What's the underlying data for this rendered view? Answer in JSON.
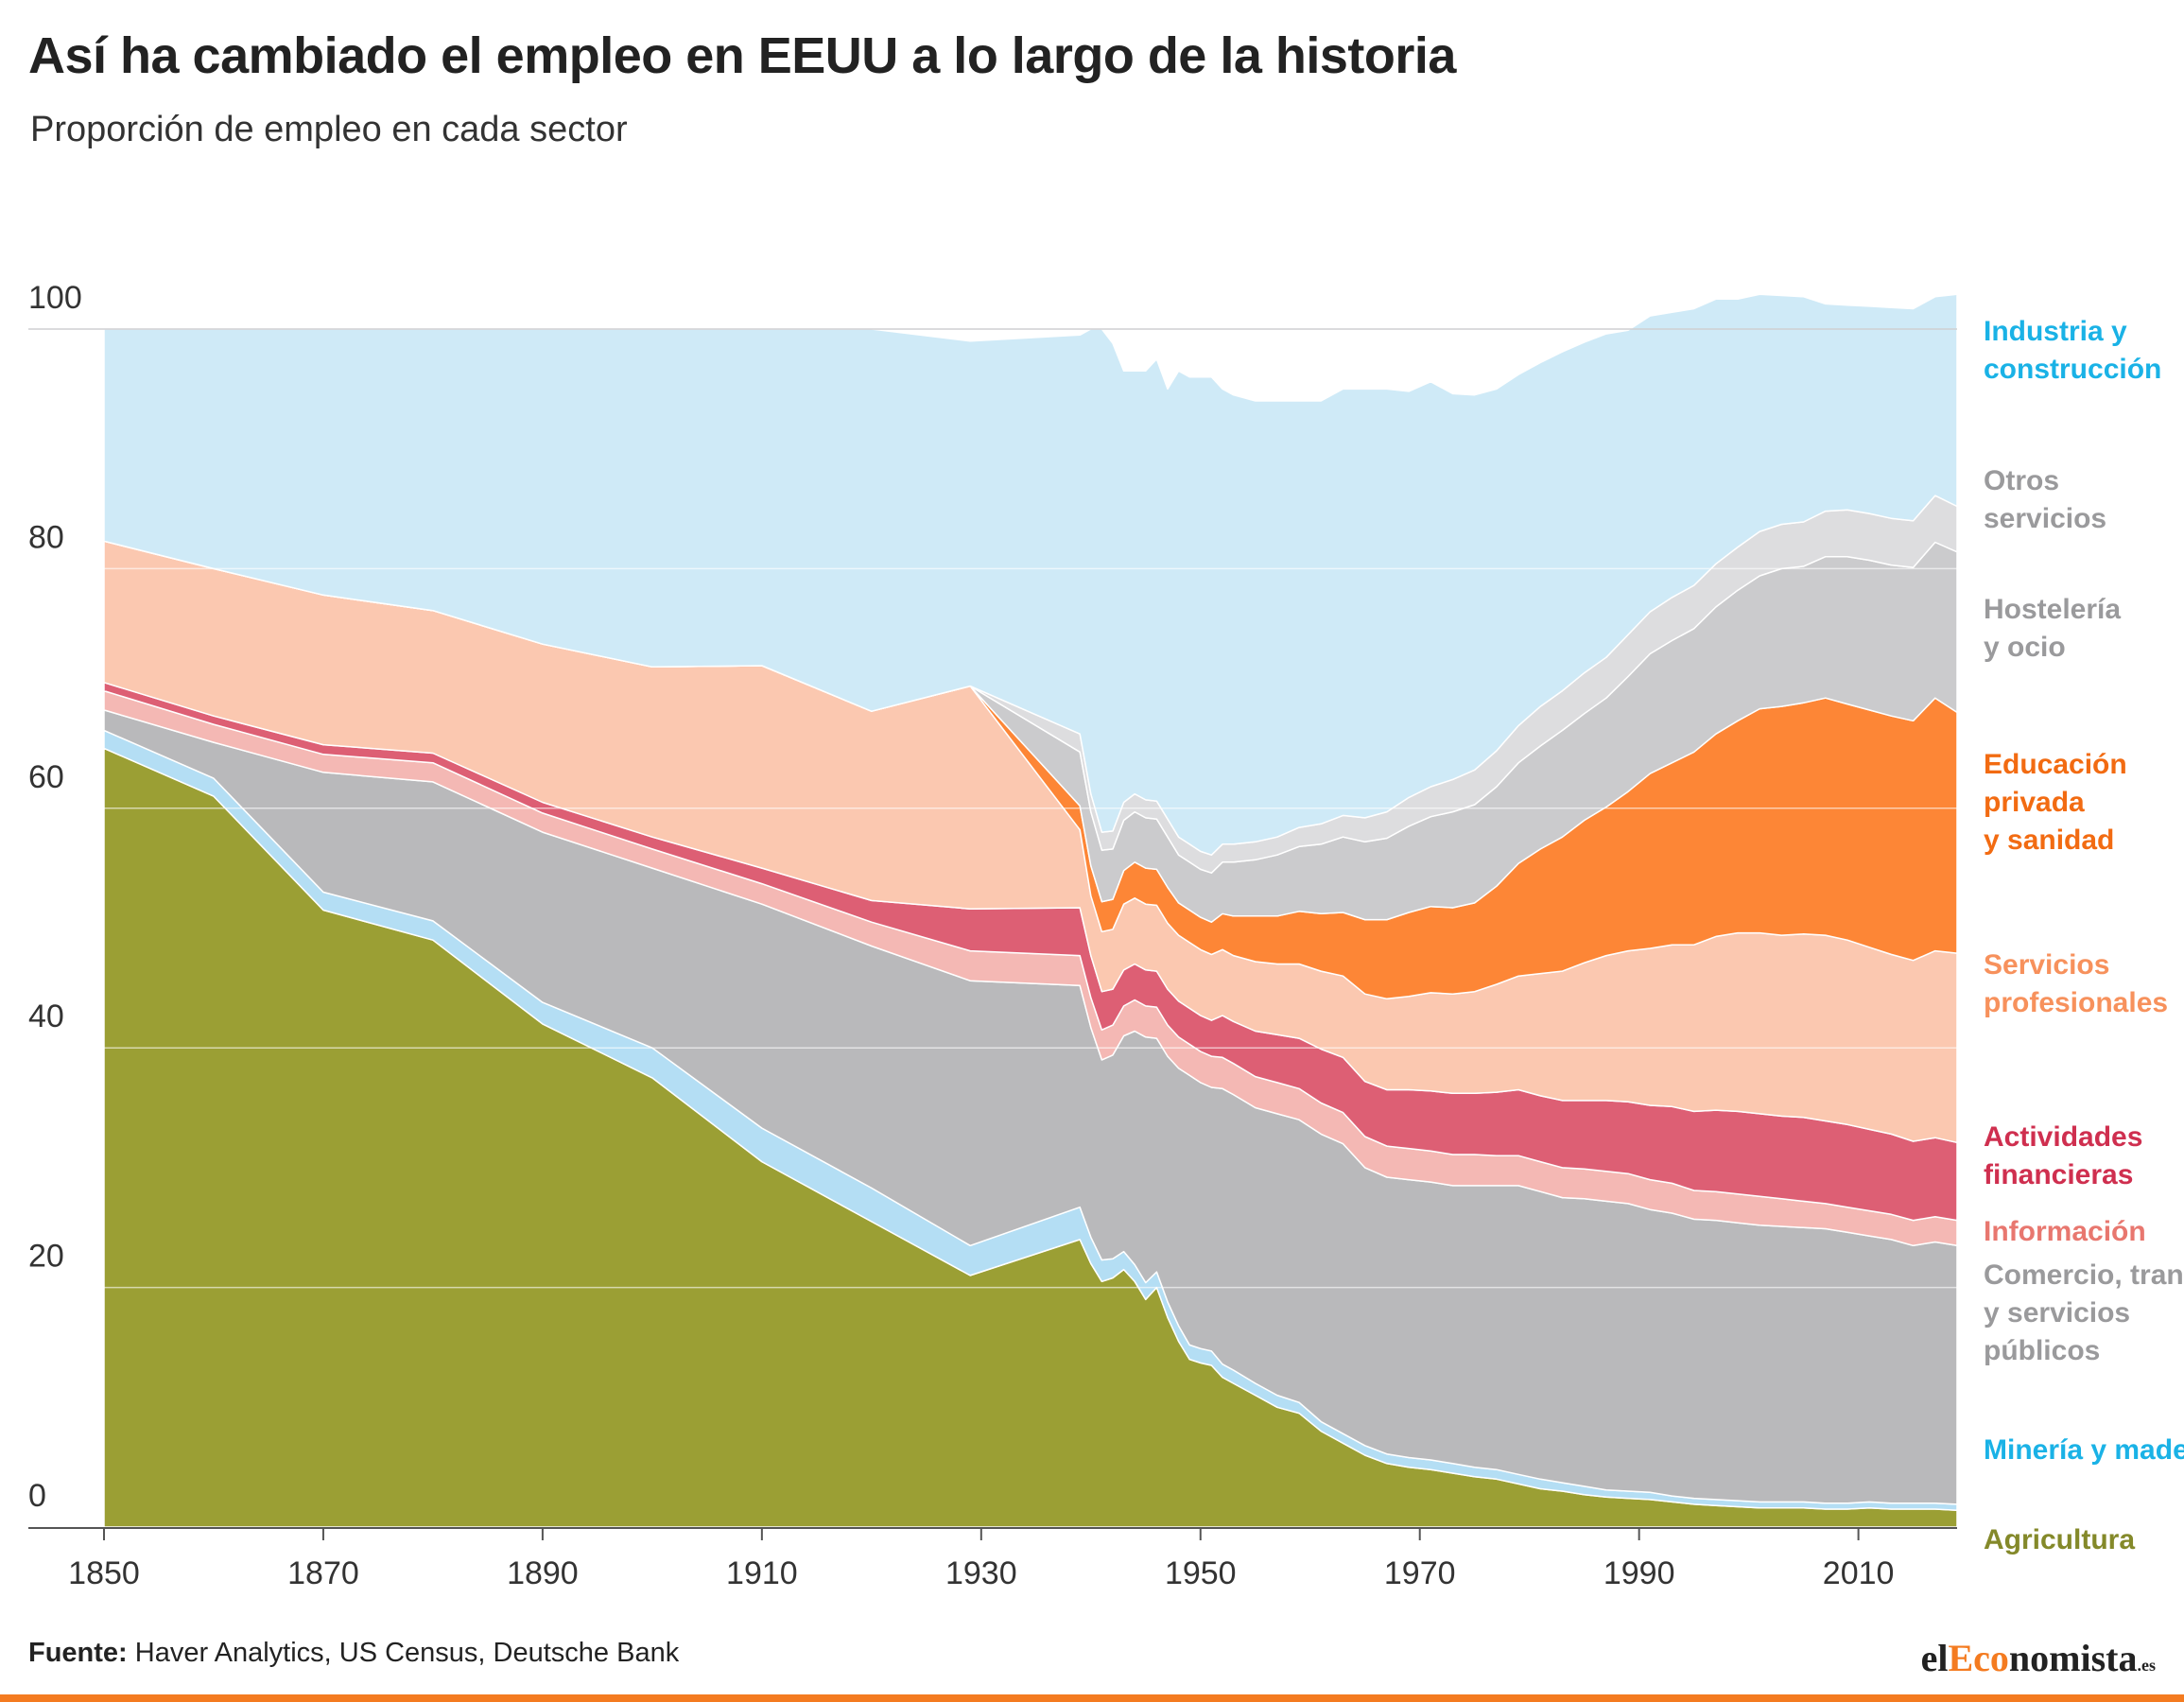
{
  "header": {
    "title": "Así ha cambiado el empleo en EEUU a lo largo de la historia",
    "subtitle": "Proporción de empleo en cada sector"
  },
  "footer": {
    "source_label": "Fuente:",
    "source_text": "Haver Analytics, US Census, Deutsche Bank",
    "logo": {
      "prefix": "el",
      "highlight": "Eco",
      "suffix": "nomista",
      "tld": ".es"
    }
  },
  "colors": {
    "accent": "#f47b20",
    "agricultura": "#9b9f34",
    "mineria": "#b4def4",
    "comercio": "#b9b9bb",
    "informacion": "#f4b8b4",
    "financieras": "#dd5f74",
    "profesionales": "#fbc8b0",
    "educacion": "#fd8636",
    "hosteleria": "#cbcbcd",
    "otros": "#dddddf",
    "industria": "#cfeaf7"
  },
  "chart_data": {
    "type": "area",
    "stacked": true,
    "ylim": [
      0,
      100
    ],
    "xlim": [
      1850,
      2019
    ],
    "yticks": [
      0,
      20,
      40,
      60,
      80,
      100
    ],
    "xticks": [
      1850,
      1870,
      1890,
      1910,
      1930,
      1950,
      1970,
      1990,
      2010
    ],
    "gridlines": "horizontal",
    "x": [
      1850,
      1860,
      1870,
      1880,
      1890,
      1900,
      1910,
      1920,
      1929,
      1939,
      1940,
      1941,
      1942,
      1943,
      1944,
      1945,
      1946,
      1947,
      1948,
      1949,
      1950,
      1951,
      1952,
      1953,
      1955,
      1957,
      1959,
      1961,
      1963,
      1965,
      1967,
      1969,
      1971,
      1973,
      1975,
      1977,
      1979,
      1981,
      1983,
      1985,
      1987,
      1989,
      1991,
      1993,
      1995,
      1997,
      1999,
      2001,
      2003,
      2005,
      2007,
      2009,
      2011,
      2013,
      2015,
      2017,
      2019
    ],
    "series": [
      {
        "name": "Agricultura",
        "color": "#9b9f34",
        "values": [
          65,
          61,
          51.5,
          49,
          42,
          37.5,
          30.5,
          25.5,
          21,
          24,
          22,
          20.5,
          20.8,
          21.5,
          20.5,
          19,
          20,
          17.5,
          15.5,
          14,
          13.7,
          13.5,
          12.5,
          12,
          11,
          10,
          9.5,
          8,
          7,
          6,
          5.3,
          5,
          4.8,
          4.5,
          4.2,
          4,
          3.6,
          3.2,
          3,
          2.7,
          2.5,
          2.4,
          2.3,
          2.1,
          1.9,
          1.8,
          1.7,
          1.6,
          1.6,
          1.6,
          1.5,
          1.5,
          1.6,
          1.5,
          1.5,
          1.5,
          1.4
        ]
      },
      {
        "name": "Minería y madera",
        "color": "#b4def4",
        "values": [
          1.5,
          1.5,
          1.5,
          1.6,
          1.8,
          2.5,
          2.8,
          2.8,
          2.5,
          2.7,
          2.2,
          1.8,
          1.6,
          1.5,
          1.4,
          1.4,
          1.3,
          1.3,
          1.3,
          1.2,
          1.2,
          1.2,
          1.1,
          1.1,
          1,
          1,
          0.9,
          0.8,
          0.8,
          0.8,
          0.8,
          0.8,
          0.8,
          0.8,
          0.8,
          0.8,
          0.8,
          0.8,
          0.7,
          0.7,
          0.6,
          0.6,
          0.6,
          0.5,
          0.5,
          0.5,
          0.5,
          0.5,
          0.5,
          0.5,
          0.5,
          0.5,
          0.5,
          0.5,
          0.5,
          0.5,
          0.5
        ]
      },
      {
        "name": "Comercio, transporte y servicios públicos",
        "color": "#b9b9bb",
        "values": [
          1.7,
          3,
          10,
          11.6,
          14.2,
          15,
          18.7,
          20.2,
          22.1,
          18.5,
          17.5,
          16.7,
          17,
          18,
          19.5,
          20.5,
          19.5,
          20.5,
          21.5,
          22.5,
          22.2,
          22,
          23,
          23,
          23,
          23.5,
          23.6,
          24,
          24.2,
          23.2,
          23.1,
          23.2,
          23.2,
          23.2,
          23.5,
          23.7,
          24.1,
          24,
          23.8,
          24,
          24.1,
          24,
          23.6,
          23.6,
          23.3,
          23.3,
          23.2,
          23.1,
          23,
          22.9,
          22.9,
          22.6,
          22.2,
          22,
          21.5,
          21.8,
          21.6
        ]
      },
      {
        "name": "Información",
        "color": "#f4b8b4",
        "values": [
          1.6,
          1.5,
          1.5,
          1.6,
          1.6,
          1.6,
          1.7,
          2,
          2.5,
          2.5,
          2.5,
          2.5,
          2.5,
          2.5,
          2.6,
          2.6,
          2.6,
          2.6,
          2.6,
          2.6,
          2.6,
          2.6,
          2.6,
          2.6,
          2.6,
          2.6,
          2.6,
          2.6,
          2.6,
          2.6,
          2.6,
          2.6,
          2.6,
          2.6,
          2.6,
          2.5,
          2.5,
          2.5,
          2.5,
          2.5,
          2.5,
          2.5,
          2.5,
          2.5,
          2.4,
          2.4,
          2.4,
          2.4,
          2.3,
          2.2,
          2.1,
          2.1,
          2.1,
          2.1,
          2.1,
          2.1,
          2.1
        ]
      },
      {
        "name": "Actividades financieras",
        "color": "#dd5f74",
        "values": [
          0.7,
          0.7,
          0.8,
          0.8,
          0.9,
          1,
          1.3,
          1.8,
          3.5,
          4,
          3.5,
          3.2,
          3,
          3,
          3,
          3,
          3,
          3,
          3,
          3,
          3,
          3,
          3.5,
          3.5,
          3.8,
          4,
          4.2,
          4.5,
          4.6,
          4.6,
          4.7,
          4.9,
          5,
          5.1,
          5.1,
          5.3,
          5.5,
          5.5,
          5.6,
          5.7,
          5.9,
          6,
          6.2,
          6.4,
          6.6,
          6.8,
          6.9,
          6.9,
          6.9,
          7,
          6.9,
          6.9,
          6.8,
          6.7,
          6.6,
          6.6,
          6.5
        ]
      },
      {
        "name": "Servicios profesionales",
        "color": "#fbc8b0",
        "values": [
          11.8,
          12.3,
          12.5,
          11.9,
          13.2,
          14.2,
          16.9,
          15.8,
          18.6,
          6.5,
          5,
          5,
          5,
          5.5,
          5.5,
          5.5,
          5.5,
          5.5,
          5.5,
          5.5,
          5.5,
          5.5,
          5.5,
          5.5,
          5.8,
          5.9,
          6.2,
          6.5,
          6.8,
          7.3,
          7.6,
          7.8,
          8.2,
          8.3,
          8.5,
          9,
          9.5,
          10.2,
          10.8,
          11.5,
          12.1,
          12.6,
          13.1,
          13.5,
          13.9,
          14.5,
          14.9,
          15.1,
          15.1,
          15.3,
          15.5,
          15.4,
          15.2,
          15,
          15.1,
          15.6,
          15.8
        ]
      },
      {
        "name": "Educación privada y sanidad",
        "color": "#fd8636",
        "values": [
          0,
          0,
          0,
          0,
          0,
          0,
          0,
          0,
          0,
          2,
          2.5,
          2.5,
          2.5,
          2.8,
          3,
          3,
          3,
          3,
          2.7,
          2.7,
          2.7,
          2.7,
          3,
          3.3,
          3.8,
          4,
          4.4,
          4.8,
          5.3,
          6.2,
          6.6,
          7,
          7.2,
          7.2,
          7.4,
          8.2,
          9.4,
          10.4,
          11.2,
          11.9,
          12.4,
          13.3,
          14.6,
          15.2,
          16.1,
          16.9,
          17.7,
          18.7,
          19.1,
          19.3,
          19.8,
          19.7,
          19.8,
          19.9,
          20,
          21.1,
          20.1
        ]
      },
      {
        "name": "Hostelería y ocio",
        "color": "#cbcbcd",
        "values": [
          0,
          0,
          0,
          0,
          0,
          0,
          0,
          0,
          0,
          4.5,
          4.5,
          4.3,
          4.2,
          4.2,
          4.2,
          4.2,
          4.2,
          4.2,
          4,
          4,
          4,
          4.1,
          4.3,
          4.5,
          4.7,
          5.1,
          5.4,
          5.8,
          6.3,
          6.5,
          6.8,
          7.2,
          7.5,
          8,
          8.2,
          8.3,
          8.4,
          8.6,
          8.9,
          8.9,
          9.1,
          9.6,
          10,
          10.2,
          10.3,
          10.6,
          10.9,
          11.1,
          11.5,
          11.4,
          11.8,
          12.3,
          12.5,
          12.6,
          12.8,
          13,
          13.4
        ]
      },
      {
        "name": "Otros servicios",
        "color": "#dddddf",
        "values": [
          0,
          0,
          0,
          0,
          0,
          0,
          0,
          0,
          0,
          1.5,
          1.5,
          1.5,
          1.5,
          1.5,
          1.5,
          1.5,
          1.5,
          1.5,
          1.5,
          1.5,
          1.5,
          1.5,
          1.5,
          1.5,
          1.5,
          1.5,
          1.6,
          1.7,
          1.8,
          2,
          2.2,
          2.4,
          2.5,
          2.7,
          2.9,
          3,
          3.1,
          3.3,
          3.3,
          3.4,
          3.4,
          3.5,
          3.5,
          3.6,
          3.6,
          3.6,
          3.6,
          3.7,
          3.7,
          3.7,
          3.8,
          3.9,
          3.9,
          3.9,
          3.9,
          3.9,
          3.8
        ]
      },
      {
        "name": "Industria y construcción",
        "color": "#cfeaf7",
        "values": [
          17.7,
          20,
          22.2,
          23.5,
          26.3,
          28.2,
          28.1,
          31.9,
          28.8,
          33.3,
          38.8,
          42,
          40.7,
          36,
          35.3,
          35.8,
          36.9,
          35.9,
          38.9,
          39,
          39.6,
          39.9,
          38,
          37.5,
          36.8,
          36.4,
          35.6,
          35.3,
          35.6,
          35.8,
          35.3,
          33.9,
          33.8,
          32.2,
          31.3,
          30.2,
          29.3,
          28.7,
          28.3,
          27.6,
          27.0,
          25.4,
          24.7,
          23.8,
          23.1,
          22.1,
          20.7,
          19.8,
          19.1,
          18.8,
          17.3,
          17.1,
          17.3,
          17.6,
          17.7,
          16.6,
          17.7
        ]
      }
    ]
  }
}
